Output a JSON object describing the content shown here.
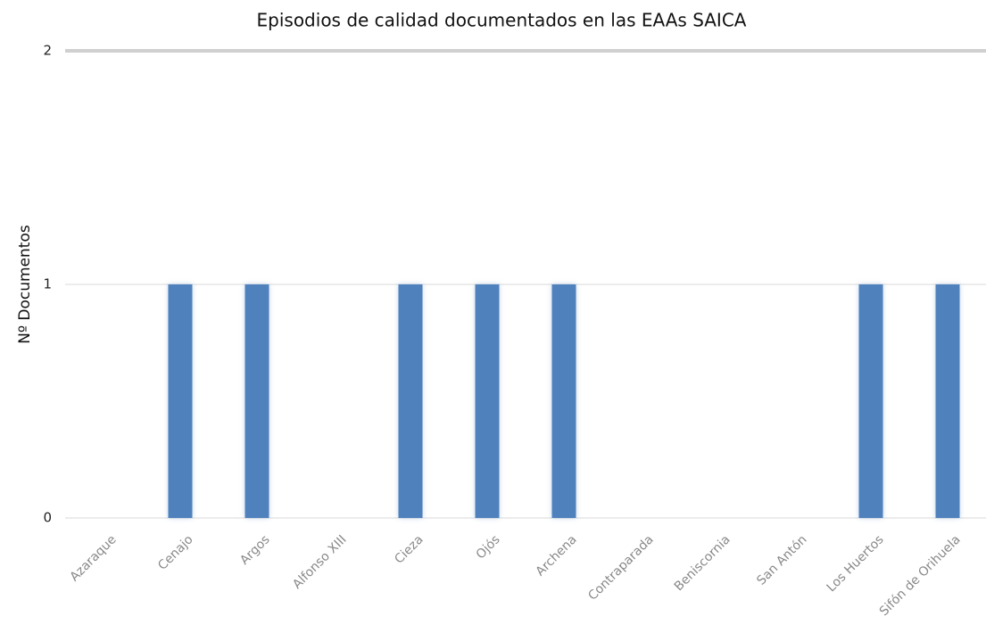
{
  "chart_data": {
    "type": "bar",
    "title": "Episodios de calidad documentados en las EAAs SAICA",
    "y_label": "Nº Documentos",
    "categories": [
      "Azaraque",
      "Cenajo",
      "Argos",
      "Alfonso XIII",
      "Cieza",
      "Ojós",
      "Archena",
      "Contraparada",
      "Beniscornia",
      "San Antón",
      "Los Huertos",
      "Sifón de Orihuela"
    ],
    "values": [
      0,
      1,
      1,
      0,
      1,
      1,
      1,
      0,
      0,
      0,
      1,
      1
    ],
    "color": "#4f81bd",
    "ylim": [
      0,
      2
    ],
    "yticks": [
      0,
      1,
      2
    ],
    "grid": true
  }
}
